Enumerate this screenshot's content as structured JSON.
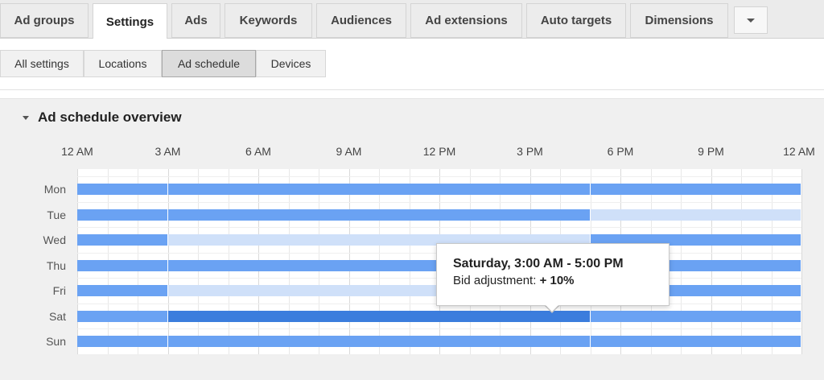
{
  "tabs": [
    {
      "label": "Ad groups"
    },
    {
      "label": "Settings",
      "active": true
    },
    {
      "label": "Ads"
    },
    {
      "label": "Keywords"
    },
    {
      "label": "Audiences"
    },
    {
      "label": "Ad extensions"
    },
    {
      "label": "Auto targets"
    },
    {
      "label": "Dimensions"
    }
  ],
  "more_icon": "chevron-down-icon",
  "subtabs": [
    {
      "label": "All settings"
    },
    {
      "label": "Locations"
    },
    {
      "label": "Ad schedule",
      "active": true
    },
    {
      "label": "Devices"
    }
  ],
  "overview": {
    "title": "Ad schedule overview",
    "hour_labels": [
      "12 AM",
      "3 AM",
      "6 AM",
      "9 AM",
      "12 PM",
      "3 PM",
      "6 PM",
      "9 PM",
      "12 AM"
    ],
    "days": [
      "Mon",
      "Tue",
      "Wed",
      "Thu",
      "Fri",
      "Sat",
      "Sun"
    ],
    "schedule": [
      [
        {
          "start": 0,
          "end": 3,
          "level": "normal"
        },
        {
          "start": 3,
          "end": 17,
          "level": "normal"
        },
        {
          "start": 17,
          "end": 24,
          "level": "normal"
        }
      ],
      [
        {
          "start": 0,
          "end": 3,
          "level": "normal"
        },
        {
          "start": 3,
          "end": 17,
          "level": "normal"
        },
        {
          "start": 17,
          "end": 24,
          "level": "reduced"
        }
      ],
      [
        {
          "start": 0,
          "end": 3,
          "level": "normal"
        },
        {
          "start": 3,
          "end": 17,
          "level": "reduced"
        },
        {
          "start": 17,
          "end": 24,
          "level": "normal"
        }
      ],
      [
        {
          "start": 0,
          "end": 3,
          "level": "normal"
        },
        {
          "start": 3,
          "end": 17,
          "level": "normal"
        },
        {
          "start": 17,
          "end": 24,
          "level": "normal"
        }
      ],
      [
        {
          "start": 0,
          "end": 3,
          "level": "normal"
        },
        {
          "start": 3,
          "end": 17,
          "level": "reduced"
        },
        {
          "start": 17,
          "end": 24,
          "level": "normal"
        }
      ],
      [
        {
          "start": 0,
          "end": 3,
          "level": "normal"
        },
        {
          "start": 3,
          "end": 17,
          "level": "increased"
        },
        {
          "start": 17,
          "end": 24,
          "level": "normal"
        }
      ],
      [
        {
          "start": 0,
          "end": 3,
          "level": "normal"
        },
        {
          "start": 3,
          "end": 17,
          "level": "normal"
        },
        {
          "start": 17,
          "end": 24,
          "level": "normal"
        }
      ]
    ],
    "colors": {
      "normal": "#6aa2f3",
      "reduced": "#cfe0f9",
      "increased": "#3b7ddd"
    }
  },
  "tooltip": {
    "title": "Saturday, 3:00 AM - 5:00 PM",
    "label": "Bid adjustment: ",
    "value": "+ 10%"
  }
}
